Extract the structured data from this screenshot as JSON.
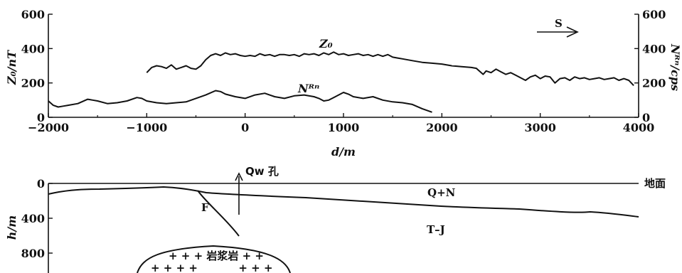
{
  "chart_data": [
    {
      "type": "line",
      "x": {
        "label": "d/m",
        "range": [
          -2000,
          4000
        ],
        "ticks": [
          -2000,
          -1000,
          0,
          1000,
          2000,
          3000,
          4000
        ]
      },
      "y_left": {
        "label": "Z₀/nT",
        "range": [
          0,
          600
        ],
        "ticks": [
          0,
          200,
          400,
          600
        ]
      },
      "y_right": {
        "label": "Nᴿⁿ/cps",
        "range": [
          0,
          600
        ],
        "ticks": [
          0,
          200,
          400,
          600
        ]
      },
      "direction_label": "S",
      "series": [
        {
          "name": "Z₀",
          "axis": "left",
          "points": [
            [
              -1000,
              260
            ],
            [
              -950,
              290
            ],
            [
              -900,
              300
            ],
            [
              -850,
              295
            ],
            [
              -800,
              285
            ],
            [
              -750,
              305
            ],
            [
              -700,
              280
            ],
            [
              -650,
              290
            ],
            [
              -600,
              300
            ],
            [
              -550,
              285
            ],
            [
              -500,
              280
            ],
            [
              -450,
              300
            ],
            [
              -400,
              335
            ],
            [
              -350,
              360
            ],
            [
              -300,
              370
            ],
            [
              -250,
              360
            ],
            [
              -200,
              375
            ],
            [
              -150,
              365
            ],
            [
              -100,
              370
            ],
            [
              -50,
              360
            ],
            [
              0,
              355
            ],
            [
              50,
              360
            ],
            [
              100,
              355
            ],
            [
              150,
              370
            ],
            [
              200,
              360
            ],
            [
              250,
              365
            ],
            [
              300,
              355
            ],
            [
              350,
              365
            ],
            [
              400,
              365
            ],
            [
              450,
              360
            ],
            [
              500,
              365
            ],
            [
              550,
              355
            ],
            [
              600,
              370
            ],
            [
              650,
              365
            ],
            [
              700,
              370
            ],
            [
              750,
              360
            ],
            [
              800,
              375
            ],
            [
              850,
              365
            ],
            [
              900,
              380
            ],
            [
              950,
              365
            ],
            [
              1000,
              370
            ],
            [
              1050,
              360
            ],
            [
              1100,
              365
            ],
            [
              1150,
              370
            ],
            [
              1200,
              360
            ],
            [
              1250,
              365
            ],
            [
              1300,
              355
            ],
            [
              1350,
              365
            ],
            [
              1400,
              355
            ],
            [
              1450,
              365
            ],
            [
              1500,
              350
            ],
            [
              1550,
              345
            ],
            [
              1600,
              340
            ],
            [
              1700,
              330
            ],
            [
              1800,
              320
            ],
            [
              1900,
              315
            ],
            [
              2000,
              310
            ],
            [
              2100,
              300
            ],
            [
              2200,
              295
            ],
            [
              2300,
              290
            ],
            [
              2350,
              285
            ],
            [
              2380,
              270
            ],
            [
              2420,
              250
            ],
            [
              2450,
              270
            ],
            [
              2500,
              260
            ],
            [
              2550,
              280
            ],
            [
              2600,
              265
            ],
            [
              2650,
              250
            ],
            [
              2700,
              260
            ],
            [
              2750,
              245
            ],
            [
              2800,
              230
            ],
            [
              2850,
              215
            ],
            [
              2900,
              235
            ],
            [
              2950,
              245
            ],
            [
              3000,
              225
            ],
            [
              3050,
              240
            ],
            [
              3100,
              235
            ],
            [
              3150,
              200
            ],
            [
              3200,
              225
            ],
            [
              3250,
              230
            ],
            [
              3300,
              215
            ],
            [
              3350,
              235
            ],
            [
              3400,
              225
            ],
            [
              3450,
              230
            ],
            [
              3500,
              220
            ],
            [
              3550,
              225
            ],
            [
              3600,
              230
            ],
            [
              3650,
              220
            ],
            [
              3700,
              225
            ],
            [
              3750,
              230
            ],
            [
              3800,
              215
            ],
            [
              3850,
              225
            ],
            [
              3900,
              215
            ],
            [
              3950,
              185
            ]
          ]
        },
        {
          "name": "Nᴿⁿ",
          "axis": "right",
          "points": [
            [
              -2000,
              95
            ],
            [
              -1950,
              70
            ],
            [
              -1900,
              60
            ],
            [
              -1850,
              65
            ],
            [
              -1800,
              70
            ],
            [
              -1700,
              80
            ],
            [
              -1600,
              105
            ],
            [
              -1550,
              100
            ],
            [
              -1500,
              95
            ],
            [
              -1400,
              80
            ],
            [
              -1300,
              85
            ],
            [
              -1200,
              95
            ],
            [
              -1100,
              115
            ],
            [
              -1050,
              110
            ],
            [
              -1000,
              95
            ],
            [
              -900,
              85
            ],
            [
              -800,
              80
            ],
            [
              -700,
              85
            ],
            [
              -600,
              90
            ],
            [
              -500,
              110
            ],
            [
              -400,
              130
            ],
            [
              -300,
              155
            ],
            [
              -250,
              150
            ],
            [
              -200,
              135
            ],
            [
              -100,
              120
            ],
            [
              0,
              110
            ],
            [
              100,
              130
            ],
            [
              200,
              140
            ],
            [
              300,
              120
            ],
            [
              400,
              110
            ],
            [
              500,
              125
            ],
            [
              600,
              130
            ],
            [
              700,
              120
            ],
            [
              750,
              110
            ],
            [
              800,
              95
            ],
            [
              850,
              100
            ],
            [
              900,
              115
            ],
            [
              1000,
              145
            ],
            [
              1050,
              135
            ],
            [
              1100,
              120
            ],
            [
              1200,
              110
            ],
            [
              1300,
              120
            ],
            [
              1400,
              100
            ],
            [
              1500,
              90
            ],
            [
              1600,
              85
            ],
            [
              1700,
              75
            ],
            [
              1800,
              50
            ],
            [
              1900,
              30
            ]
          ]
        }
      ]
    },
    {
      "type": "diagram",
      "y": {
        "label": "h/m",
        "range": [
          0,
          1000
        ],
        "ticks": [
          0,
          400,
          800
        ]
      },
      "labels": {
        "well": "Qw 孔",
        "ground": "地面",
        "fault": "F",
        "upper_layer": "Q+N",
        "lower_layer": "T–J",
        "intrusion_row1": "+ + + 岩浆岩 + +",
        "intrusion_row2": "+ + + +           + + +"
      }
    }
  ]
}
